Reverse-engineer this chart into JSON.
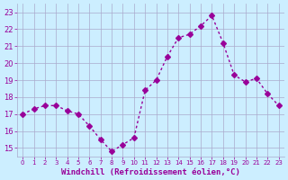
{
  "x": [
    0,
    1,
    2,
    3,
    4,
    5,
    6,
    7,
    8,
    9,
    10,
    11,
    12,
    13,
    14,
    15,
    16,
    17,
    18,
    19,
    20,
    21,
    22,
    23
  ],
  "y": [
    17,
    17.3,
    17.5,
    17.5,
    17.2,
    17.0,
    16.3,
    15.5,
    14.8,
    15.2,
    15.6,
    18.4,
    19.0,
    20.4,
    21.5,
    21.7,
    22.2,
    22.8,
    21.2,
    19.3,
    18.9,
    19.1,
    18.2,
    17.5
  ],
  "line_color": "#990099",
  "marker": "D",
  "marker_size": 3,
  "bg_color": "#cceeff",
  "grid_color": "#aaaacc",
  "xlabel": "Windchill (Refroidissement éolien,°C)",
  "xlabel_color": "#990099",
  "tick_color": "#990099",
  "ylim": [
    14.5,
    23.5
  ],
  "xlim": [
    -0.5,
    23.5
  ],
  "yticks": [
    15,
    16,
    17,
    18,
    19,
    20,
    21,
    22,
    23
  ],
  "xticks": [
    0,
    1,
    2,
    3,
    4,
    5,
    6,
    7,
    8,
    9,
    10,
    11,
    12,
    13,
    14,
    15,
    16,
    17,
    18,
    19,
    20,
    21,
    22,
    23
  ]
}
